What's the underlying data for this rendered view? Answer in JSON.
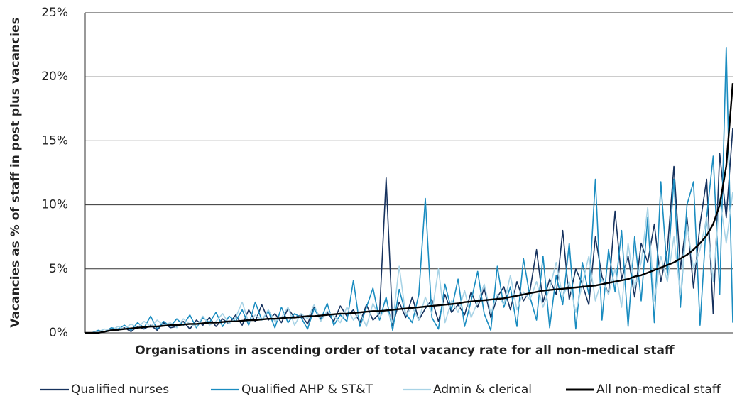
{
  "chart_data": {
    "type": "line",
    "ylabel": "Vacancies as % of staff in post plus vacancies",
    "xlabel": "Organisations in ascending order of total vacancy rate for all non-medical staff",
    "ylim": [
      0,
      25
    ],
    "yticks": [
      {
        "value": 0,
        "label": "0%"
      },
      {
        "value": 5,
        "label": "5%"
      },
      {
        "value": 10,
        "label": "10%"
      },
      {
        "value": 15,
        "label": "15%"
      },
      {
        "value": 20,
        "label": "20%"
      },
      {
        "value": 25,
        "label": "25%"
      }
    ],
    "grid": true,
    "legend": "bottom",
    "series": [
      {
        "name": "Qualified nurses",
        "color": "#16325e",
        "width": 1.6,
        "values": [
          0,
          0,
          0,
          0.1,
          0.3,
          0.2,
          0.4,
          0.1,
          0.5,
          0.3,
          0.6,
          0.2,
          0.8,
          0.4,
          0.5,
          0.9,
          0.3,
          1.0,
          0.6,
          1.2,
          0.5,
          1.1,
          0.7,
          1.4,
          0.6,
          1.8,
          0.9,
          2.2,
          1.0,
          1.5,
          0.8,
          1.9,
          1.2,
          1.4,
          0.7,
          2.0,
          1.1,
          1.6,
          0.9,
          2.1,
          1.3,
          1.8,
          0.8,
          2.2,
          1.0,
          1.5,
          12.1,
          0.6,
          2.4,
          1.2,
          2.8,
          1.0,
          1.9,
          2.6,
          0.9,
          3.0,
          1.6,
          2.2,
          1.4,
          3.2,
          2.0,
          3.5,
          1.2,
          2.8,
          3.6,
          1.8,
          4.0,
          2.5,
          3.3,
          6.5,
          2.4,
          4.2,
          3.0,
          8.0,
          2.6,
          5.0,
          3.8,
          2.2,
          7.5,
          4.4,
          3.0,
          9.5,
          4.2,
          6.0,
          2.8,
          7.0,
          5.5,
          8.5,
          4.0,
          6.5,
          13.0,
          5.0,
          9.0,
          3.5,
          8.5,
          12.0,
          1.5,
          14.0,
          9.0,
          16.0
        ]
      },
      {
        "name": "Qualified AHP & ST&T",
        "color": "#1a8cc0",
        "width": 1.6,
        "values": [
          0,
          0,
          0.2,
          0.1,
          0.4,
          0.3,
          0.6,
          0.2,
          0.8,
          0.4,
          1.3,
          0.3,
          0.9,
          0.5,
          1.1,
          0.6,
          1.4,
          0.4,
          1.2,
          0.8,
          1.6,
          0.5,
          1.3,
          0.9,
          1.8,
          0.6,
          2.4,
          1.0,
          1.7,
          0.4,
          2.0,
          0.8,
          1.5,
          1.2,
          0.3,
          1.9,
          1.0,
          2.3,
          0.6,
          1.4,
          0.9,
          4.1,
          0.5,
          2.0,
          3.5,
          1.0,
          2.8,
          0.2,
          3.4,
          1.5,
          0.8,
          3.0,
          10.5,
          1.2,
          0.3,
          3.8,
          1.8,
          4.2,
          0.5,
          2.5,
          4.8,
          1.5,
          0.2,
          5.2,
          2.0,
          3.6,
          0.5,
          5.8,
          2.8,
          1.0,
          6.0,
          0.4,
          4.5,
          2.2,
          7.0,
          0.3,
          5.5,
          3.0,
          12.0,
          1.0,
          6.5,
          3.2,
          8.0,
          0.5,
          7.5,
          2.5,
          9.0,
          0.8,
          11.8,
          4.5,
          12.0,
          2.0,
          10.0,
          11.8,
          0.6,
          9.0,
          13.8,
          3.0,
          22.3,
          0.8
        ]
      },
      {
        "name": "Admin & clerical",
        "color": "#a8d3e6",
        "width": 1.6,
        "values": [
          0,
          0,
          0.1,
          0.3,
          0.2,
          0.5,
          0.3,
          0.7,
          0.4,
          0.9,
          0.5,
          1.0,
          0.6,
          0.8,
          0.4,
          1.1,
          0.7,
          0.5,
          1.3,
          0.6,
          0.9,
          1.5,
          0.7,
          1.2,
          2.4,
          0.8,
          1.4,
          1.0,
          1.8,
          0.9,
          1.2,
          2.0,
          0.6,
          1.5,
          1.1,
          2.2,
          0.9,
          1.7,
          1.3,
          0.8,
          2.0,
          1.0,
          1.6,
          0.5,
          2.3,
          1.2,
          1.9,
          0.8,
          5.2,
          1.4,
          2.0,
          1.0,
          2.8,
          1.5,
          5.0,
          0.8,
          2.5,
          1.6,
          3.3,
          1.2,
          2.4,
          3.8,
          1.5,
          3.0,
          2.2,
          4.5,
          1.8,
          3.2,
          2.6,
          4.0,
          2.0,
          3.5,
          5.5,
          2.8,
          4.0,
          1.6,
          3.8,
          6.0,
          2.5,
          4.2,
          3.0,
          5.0,
          2.0,
          7.0,
          3.5,
          5.5,
          9.8,
          2.5,
          6.0,
          4.0,
          7.5,
          3.0,
          8.5,
          5.0,
          6.5,
          9.0,
          4.0,
          10.5,
          7.0,
          11.0
        ]
      },
      {
        "name": "All non-medical staff",
        "color": "#000000",
        "width": 2.4,
        "values": [
          0,
          0,
          0,
          0.1,
          0.2,
          0.25,
          0.3,
          0.35,
          0.4,
          0.45,
          0.5,
          0.5,
          0.55,
          0.6,
          0.6,
          0.65,
          0.7,
          0.7,
          0.75,
          0.8,
          0.8,
          0.85,
          0.9,
          0.9,
          0.95,
          1.0,
          1.0,
          1.05,
          1.1,
          1.1,
          1.15,
          1.2,
          1.2,
          1.25,
          1.3,
          1.3,
          1.35,
          1.4,
          1.45,
          1.5,
          1.5,
          1.55,
          1.6,
          1.65,
          1.7,
          1.7,
          1.75,
          1.8,
          1.85,
          1.9,
          1.95,
          2.0,
          2.05,
          2.1,
          2.15,
          2.2,
          2.25,
          2.3,
          2.4,
          2.45,
          2.5,
          2.55,
          2.6,
          2.65,
          2.7,
          2.8,
          2.9,
          3.0,
          3.1,
          3.2,
          3.3,
          3.35,
          3.4,
          3.45,
          3.5,
          3.55,
          3.6,
          3.65,
          3.7,
          3.8,
          3.9,
          4.0,
          4.1,
          4.2,
          4.4,
          4.5,
          4.7,
          4.9,
          5.1,
          5.3,
          5.5,
          5.8,
          6.1,
          6.5,
          7.0,
          7.6,
          8.5,
          10.0,
          13.0,
          19.5
        ]
      }
    ]
  }
}
